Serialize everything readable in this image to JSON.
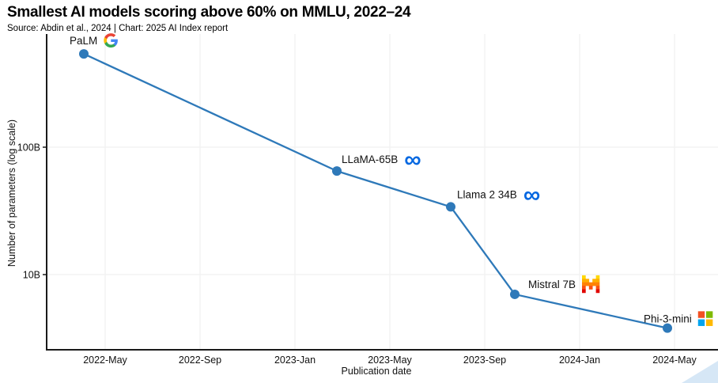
{
  "title": "Smallest AI models scoring above 60% on MMLU, 2022–24",
  "subtitle": "Source: Abdin et al., 2024 | Chart: 2025 AI Index report",
  "chart_data": {
    "type": "line",
    "title": "Smallest AI models scoring above 60% on MMLU, 2022–24",
    "xlabel": "Publication date",
    "ylabel": "Number of parameters (log scale)",
    "y_scale": "log",
    "grid": true,
    "legend": "none",
    "x_ticks": [
      "2022-May",
      "2022-Sep",
      "2023-Jan",
      "2023-May",
      "2023-Sep",
      "2024-Jan",
      "2024-May"
    ],
    "y_ticks": [
      {
        "label": "100B",
        "value": 100
      },
      {
        "label": "10B",
        "value": 10
      }
    ],
    "points": [
      {
        "model": "PaLM",
        "company": "google",
        "date": "2022-04-04",
        "params_billions": 540
      },
      {
        "model": "LLaMA-65B",
        "company": "meta",
        "date": "2023-02-24",
        "params_billions": 65
      },
      {
        "model": "Llama 2 34B",
        "company": "meta",
        "date": "2023-07-18",
        "params_billions": 34
      },
      {
        "model": "Mistral 7B",
        "company": "mistral",
        "date": "2023-10-09",
        "params_billions": 7
      },
      {
        "model": "Phi-3-mini",
        "company": "microsoft",
        "date": "2024-04-22",
        "params_billions": 3.8
      }
    ]
  },
  "colors": {
    "line": "#2E79B9",
    "marker": "#2E79B9",
    "gridline": "#f1f1f1",
    "axis": "#1a1a1a",
    "meta_blue": "#0668E1",
    "google": [
      "#4285F4",
      "#34A853",
      "#FBBC05",
      "#EA4335"
    ],
    "microsoft": [
      "#F25022",
      "#7FBA00",
      "#00A4EF",
      "#FFB900"
    ],
    "mistral": [
      "#FFD800",
      "#FFAF00",
      "#FF8205",
      "#FA500F",
      "#E10500"
    ],
    "watermark": "#cfe3f4"
  }
}
